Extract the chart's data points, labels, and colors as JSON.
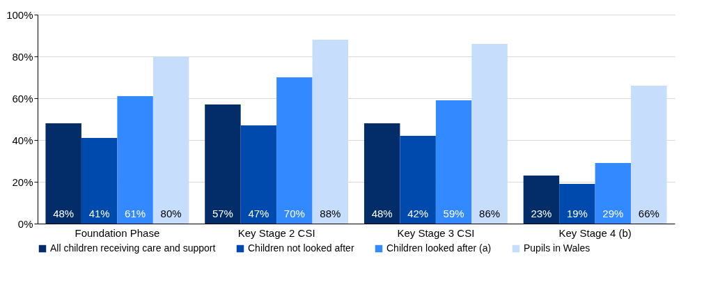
{
  "chart_data": {
    "type": "bar",
    "categories": [
      "Foundation Phase",
      "Key Stage 2 CSI",
      "Key Stage 3 CSI",
      "Key Stage 4 (b)"
    ],
    "series": [
      {
        "name": "All children receiving care and support",
        "color": "#022d69",
        "values": [
          48,
          57,
          48,
          23
        ]
      },
      {
        "name": "Children not looked after",
        "color": "#004aad",
        "values": [
          41,
          47,
          42,
          19
        ]
      },
      {
        "name": "Children looked after (a)",
        "color": "#3389ff",
        "values": [
          61,
          70,
          59,
          29
        ]
      },
      {
        "name": "Pupils in Wales",
        "color": "#c6ddfc",
        "values": [
          80,
          88,
          86,
          66
        ]
      }
    ],
    "value_labels": [
      [
        "48%",
        "57%",
        "48%",
        "23%"
      ],
      [
        "41%",
        "47%",
        "42%",
        "19%"
      ],
      [
        "61%",
        "70%",
        "59%",
        "29%"
      ],
      [
        "80%",
        "88%",
        "86%",
        "66%"
      ]
    ],
    "ylim": [
      0,
      100
    ],
    "yticks": [
      {
        "value": 0,
        "label": "0%"
      },
      {
        "value": 20,
        "label": "20%"
      },
      {
        "value": 40,
        "label": "40%"
      },
      {
        "value": 60,
        "label": "60%"
      },
      {
        "value": 80,
        "label": "80%"
      },
      {
        "value": 100,
        "label": "100%"
      }
    ],
    "grid": "y",
    "legend": "bottom"
  }
}
